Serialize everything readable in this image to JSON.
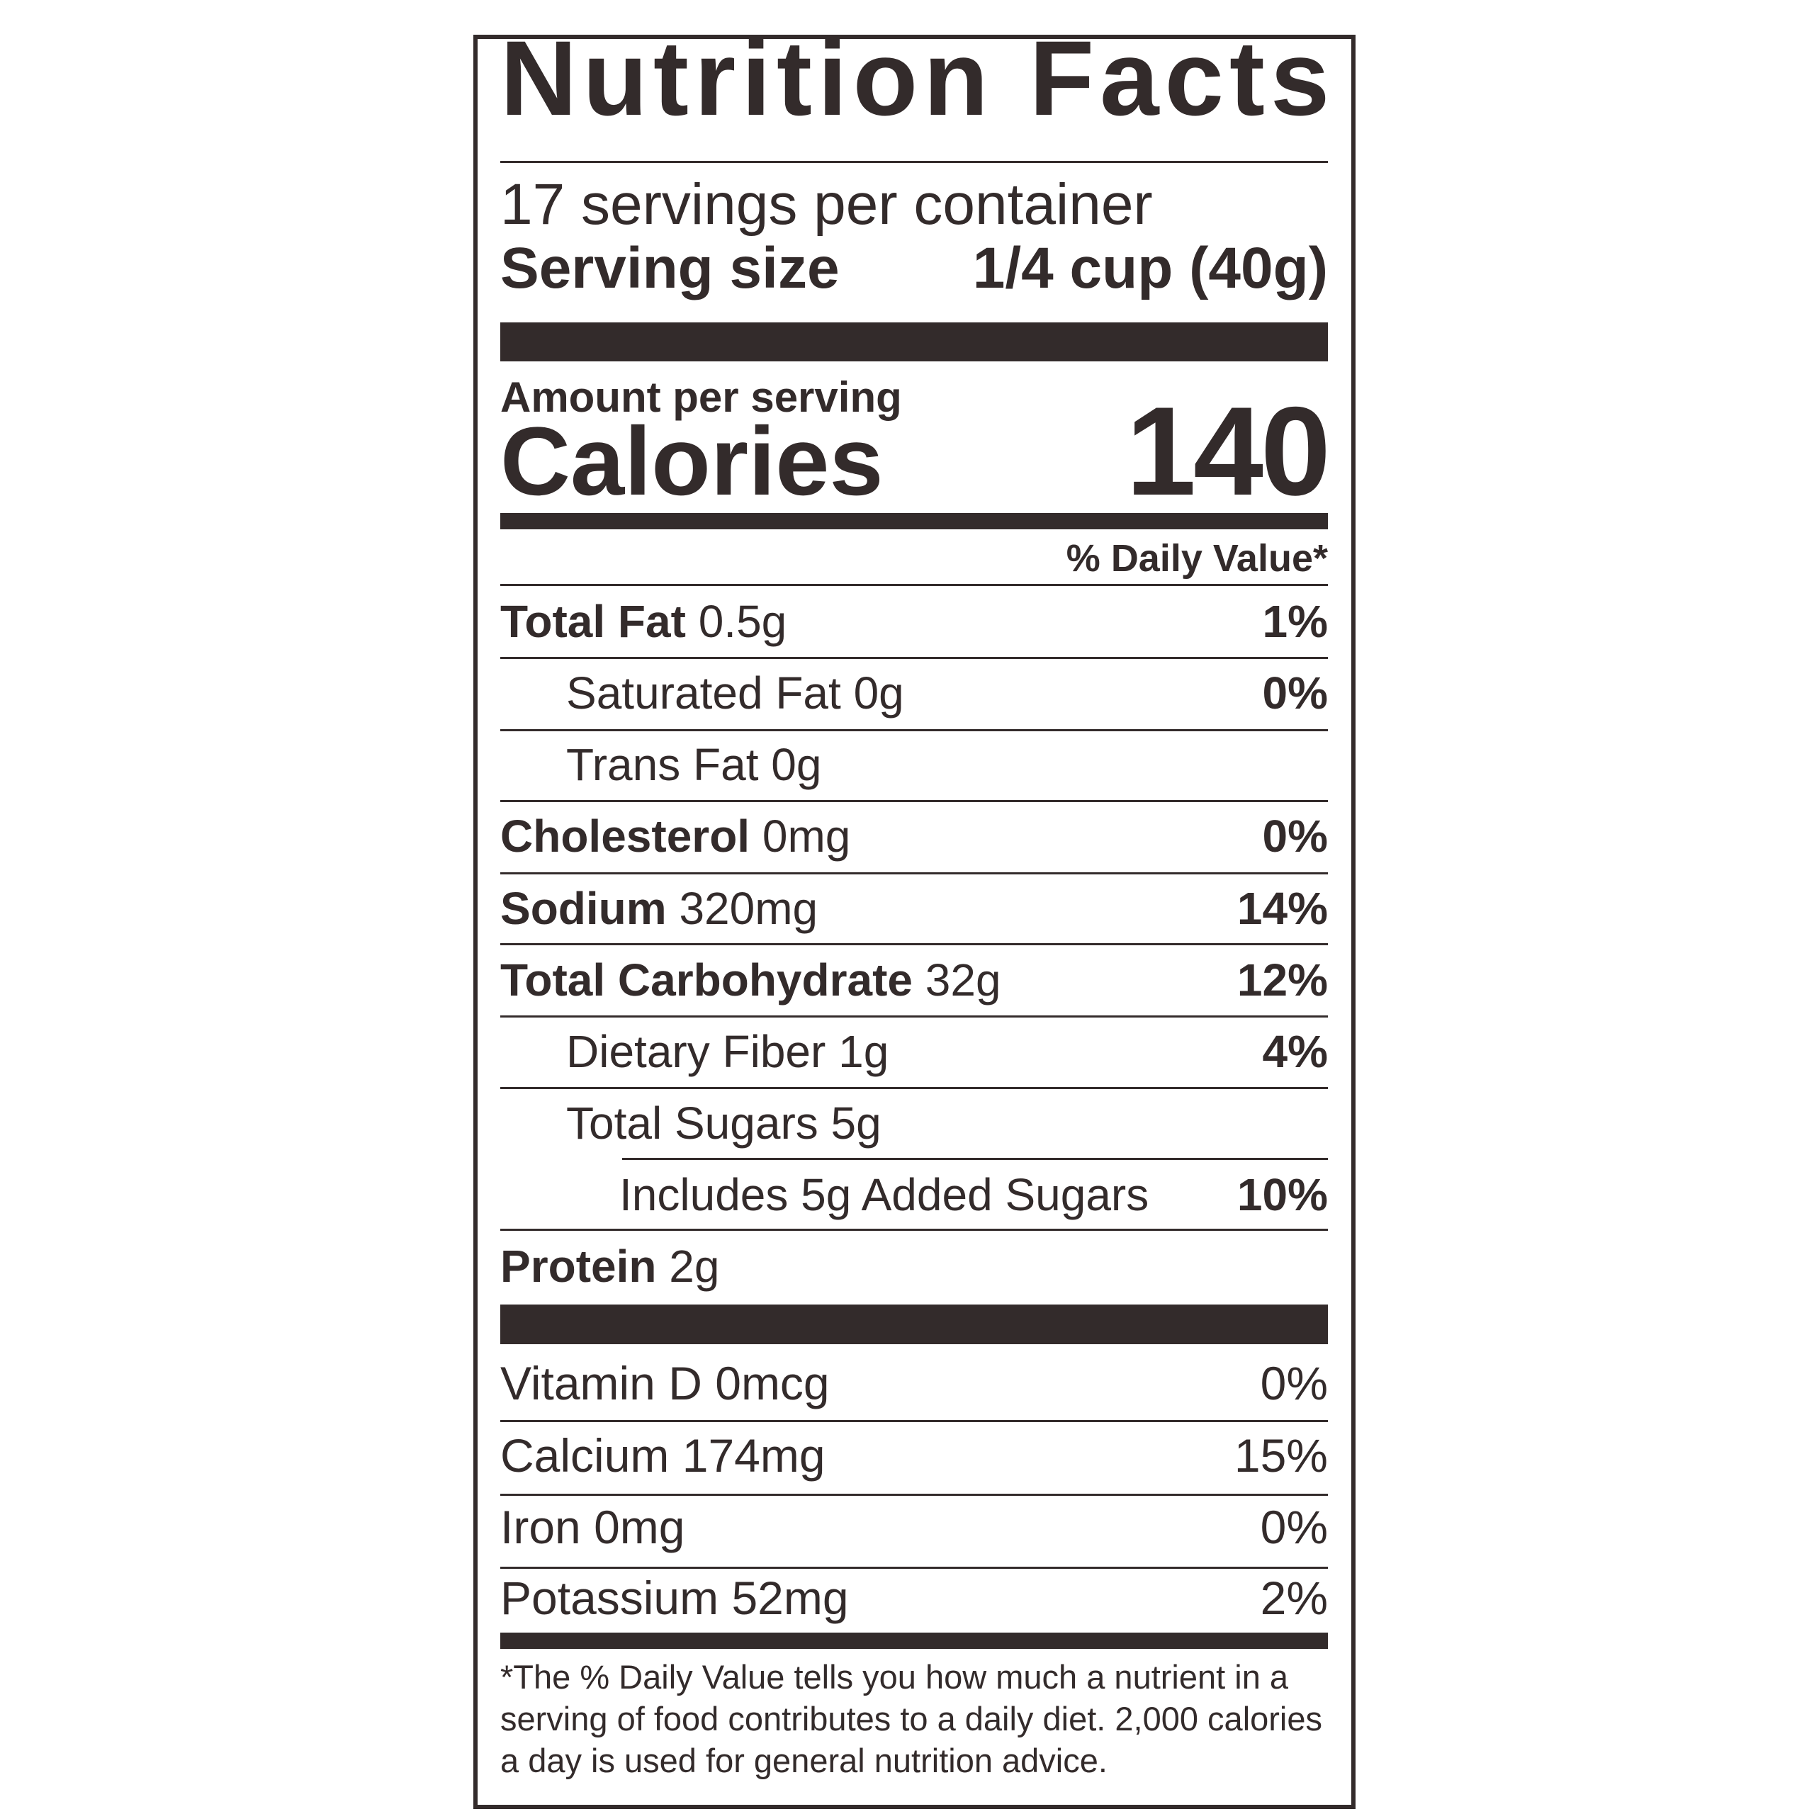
{
  "title": "Nutrition Facts",
  "servings_per_container": "17 servings per container",
  "serving_size_label": "Serving size",
  "serving_size_value": "1/4 cup (40g)",
  "amount_per_serving": "Amount per serving",
  "calories_label": "Calories",
  "calories_value": "140",
  "daily_value_header": "% Daily Value*",
  "nutrients": [
    {
      "name": "Total Fat",
      "amount": "0.5g",
      "dv": "1%"
    },
    {
      "name": "Saturated Fat",
      "amount": "0g",
      "dv": "0%"
    },
    {
      "name": "Trans Fat",
      "amount": "0g",
      "dv": ""
    },
    {
      "name": "Cholesterol",
      "amount": "0mg",
      "dv": "0%"
    },
    {
      "name": "Sodium",
      "amount": "320mg",
      "dv": "14%"
    },
    {
      "name": "Total Carbohydrate",
      "amount": "32g",
      "dv": "12%"
    },
    {
      "name": "Dietary Fiber",
      "amount": "1g",
      "dv": "4%"
    },
    {
      "name": "Total Sugars",
      "amount": "5g",
      "dv": ""
    },
    {
      "name": "Includes 5g Added Sugars",
      "amount": "",
      "dv": "10%"
    },
    {
      "name": "Protein",
      "amount": "2g",
      "dv": ""
    }
  ],
  "vitamins": [
    {
      "name": "Vitamin D",
      "amount": "0mcg",
      "dv": "0%"
    },
    {
      "name": "Calcium",
      "amount": "174mg",
      "dv": "15%"
    },
    {
      "name": "Iron",
      "amount": "0mg",
      "dv": "0%"
    },
    {
      "name": "Potassium",
      "amount": "52mg",
      "dv": "2%"
    }
  ],
  "footnote": "*The % Daily Value tells you how much a nutrient in a serving of food contributes to a daily diet. 2,000 calories a day is used for general nutrition advice.",
  "colors": {
    "ink": "#332b2b",
    "background": "#ffffff"
  }
}
